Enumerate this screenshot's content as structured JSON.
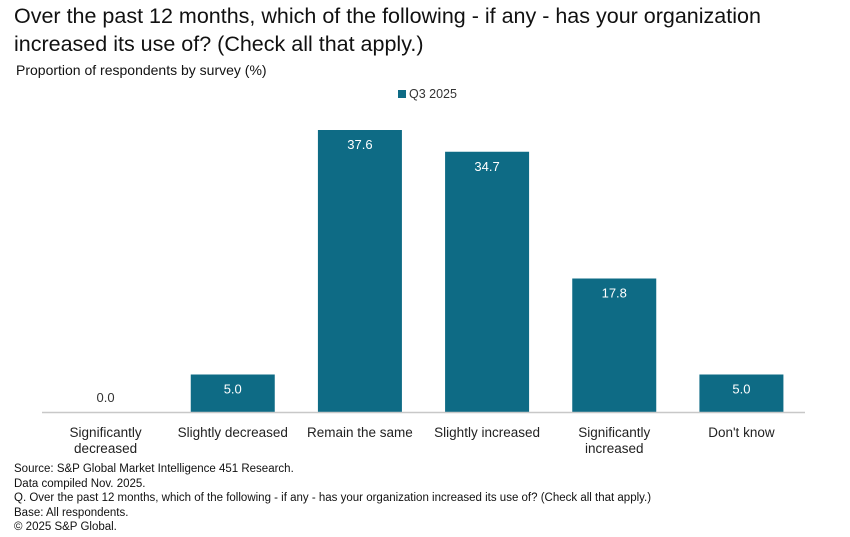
{
  "chart_data": {
    "type": "bar",
    "title": "Over the past 12 months, which of the following - if any - has your organization increased its use of? (Check all that apply.)",
    "subtitle": "Proportion of respondents by survey (%)",
    "series": [
      {
        "name": "Q3 2025",
        "color": "#0e6b85",
        "values": [
          0.0,
          5.0,
          37.6,
          34.7,
          17.8,
          5.0
        ]
      }
    ],
    "categories": [
      [
        "Significantly",
        "decreased"
      ],
      [
        "Slightly decreased"
      ],
      [
        "Remain the same"
      ],
      [
        "Slightly increased"
      ],
      [
        "Significantly",
        "increased"
      ],
      [
        "Don't know"
      ]
    ],
    "data_labels": [
      "0.0",
      "5.0",
      "37.6",
      "34.7",
      "17.8",
      "5.0"
    ],
    "ylim": [
      0,
      40
    ],
    "legend_position": "top-center",
    "grid": false
  },
  "footer": {
    "source": "Source: S&P Global Market Intelligence 451 Research.",
    "compiled": "Data compiled Nov. 2025.",
    "question": "Q. Over the past 12 months, which of the following - if any - has your organization increased its use of? (Check all that apply.)",
    "base": "Base: All respondents.",
    "copyright": "© 2025 S&P Global."
  }
}
